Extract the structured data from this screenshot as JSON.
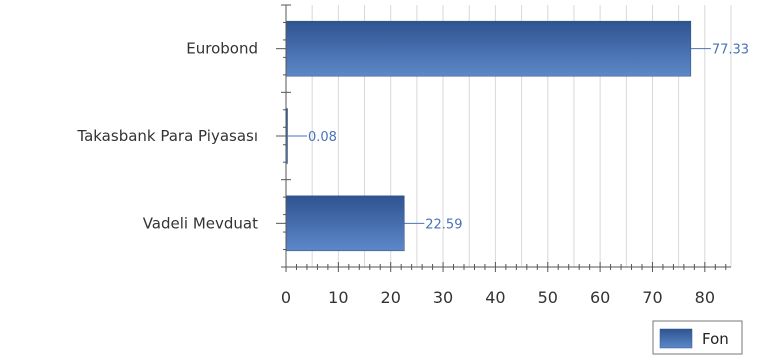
{
  "chart_data": {
    "type": "bar",
    "orientation": "horizontal",
    "categories": [
      "Eurobond",
      "Takasbank Para Piyasası",
      "Vadeli Mevduat"
    ],
    "series": [
      {
        "name": "Fon",
        "values": [
          77.33,
          0.08,
          22.59
        ],
        "color": "#3d68a8"
      }
    ],
    "data_labels": [
      "77.33",
      "0.08",
      "22.59"
    ],
    "xlim": [
      0,
      85
    ],
    "xticks": [
      0,
      10,
      20,
      30,
      40,
      50,
      60,
      70,
      80
    ],
    "grid": true,
    "legend_position": "bottom-right",
    "title": "",
    "xlabel": "",
    "ylabel": ""
  },
  "colors": {
    "bar_dark": "#2e5490",
    "bar_light": "#5d88c8",
    "gridline": "#d8d8d8",
    "axis": "#555555",
    "data_label": "#4a72b8"
  }
}
